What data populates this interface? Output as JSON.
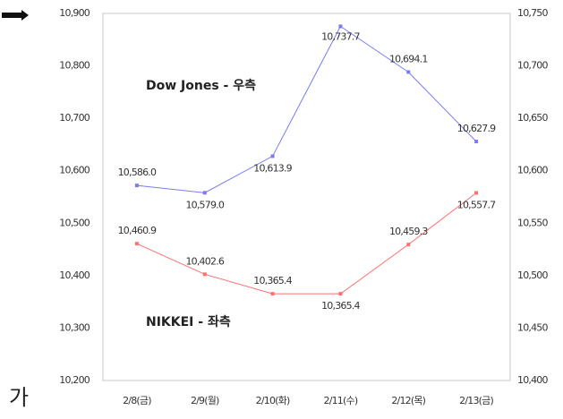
{
  "chart_data": {
    "type": "line",
    "categories": [
      "2/8(금)",
      "2/9(월)",
      "2/10(화)",
      "2/11(수)",
      "2/12(목)",
      "2/13(금)"
    ],
    "series": [
      {
        "name": "Dow Jones - 우측",
        "color": "#7b7bf0",
        "axis": "y2",
        "values": [
          10586.0,
          10579.0,
          10613.9,
          10737.7,
          10694.1,
          10627.9
        ],
        "value_labels": [
          "10,586.0",
          "10,579.0",
          "10,613.9",
          "10,737.7",
          "10,694.1",
          "10,627.9"
        ]
      },
      {
        "name": "NIKKEI - 좌측",
        "color": "#ff6f6f",
        "values": [
          10460.9,
          10402.6,
          10365.4,
          10365.4,
          10459.3,
          10557.7
        ],
        "value_labels": [
          "10,460.9",
          "10,402.6",
          "10,365.4",
          "10,365.4",
          "10,459.3",
          "10,557.7"
        ]
      }
    ],
    "ylim": [
      10200,
      10900
    ],
    "yticks": [
      {
        "value": 10200,
        "label": "10,200"
      },
      {
        "value": 10300,
        "label": "10,300"
      },
      {
        "value": 10400,
        "label": "10,400"
      },
      {
        "value": 10500,
        "label": "10,500"
      },
      {
        "value": 10600,
        "label": "10,600"
      },
      {
        "value": 10700,
        "label": "10,700"
      },
      {
        "value": 10800,
        "label": "10,800"
      },
      {
        "value": 10900,
        "label": "10,900"
      }
    ],
    "y2lim": [
      10400,
      10750
    ],
    "y2ticks": [
      {
        "value": 10400,
        "label": "10,400"
      },
      {
        "value": 10450,
        "label": "10,450"
      },
      {
        "value": 10500,
        "label": "10,500"
      },
      {
        "value": 10550,
        "label": "10,550"
      },
      {
        "value": 10600,
        "label": "10,600"
      },
      {
        "value": 10650,
        "label": "10,650"
      },
      {
        "value": 10700,
        "label": "10,700"
      },
      {
        "value": 10750,
        "label": "10,750"
      }
    ],
    "grid": false,
    "corner_text": "가"
  }
}
